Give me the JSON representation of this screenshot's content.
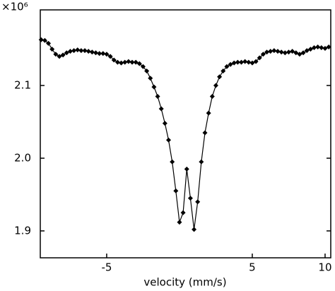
{
  "chart_data": {
    "type": "line",
    "y_multiplier": "×10⁶",
    "x_label": "velocity (mm/s)",
    "xlim": [
      -9.56,
      10.39
    ],
    "xticks": [
      -5,
      5,
      10
    ],
    "ylim": [
      1.863,
      2.204
    ],
    "yticks": [
      1.9,
      {
        "value": 2,
        "label": "2.0"
      },
      2.1
    ],
    "series": [
      {
        "color": "#000000",
        "x": [
          -9.5,
          -9.25,
          -9,
          -8.75,
          -8.5,
          -8.25,
          -8,
          -7.75,
          -7.5,
          -7.25,
          -7,
          -6.75,
          -6.5,
          -6.25,
          -6,
          -5.75,
          -5.5,
          -5.25,
          -5,
          -4.75,
          -4.5,
          -4.25,
          -4,
          -3.75,
          -3.5,
          -3.25,
          -3,
          -2.75,
          -2.5,
          -2.25,
          -2,
          -1.75,
          -1.5,
          -1.25,
          -1,
          -0.75,
          -0.5,
          -0.25,
          0,
          0.25,
          0.5,
          0.75,
          1,
          1.25,
          1.5,
          1.75,
          2,
          2.25,
          2.5,
          2.75,
          3,
          3.25,
          3.5,
          3.75,
          4,
          4.25,
          4.5,
          4.75,
          5,
          5.25,
          5.5,
          5.75,
          6,
          6.25,
          6.5,
          6.75,
          7,
          7.25,
          7.5,
          7.75,
          8,
          8.25,
          8.5,
          8.75,
          9,
          9.25,
          9.5,
          9.75,
          10,
          10.25
        ],
        "values": [
          2.163,
          2.162,
          2.158,
          2.15,
          2.143,
          2.14,
          2.142,
          2.145,
          2.147,
          2.148,
          2.149,
          2.148,
          2.148,
          2.147,
          2.146,
          2.145,
          2.144,
          2.144,
          2.143,
          2.14,
          2.135,
          2.132,
          2.131,
          2.132,
          2.133,
          2.132,
          2.132,
          2.13,
          2.126,
          2.12,
          2.11,
          2.098,
          2.085,
          2.068,
          2.048,
          2.025,
          1.995,
          1.955,
          1.912,
          1.925,
          1.985,
          1.945,
          1.902,
          1.94,
          1.995,
          2.035,
          2.062,
          2.085,
          2.1,
          2.112,
          2.12,
          2.126,
          2.129,
          2.131,
          2.132,
          2.132,
          2.133,
          2.132,
          2.131,
          2.133,
          2.138,
          2.143,
          2.146,
          2.147,
          2.148,
          2.147,
          2.146,
          2.145,
          2.146,
          2.147,
          2.145,
          2.143,
          2.145,
          2.148,
          2.15,
          2.152,
          2.153,
          2.152,
          2.151,
          2.153
        ]
      }
    ]
  }
}
